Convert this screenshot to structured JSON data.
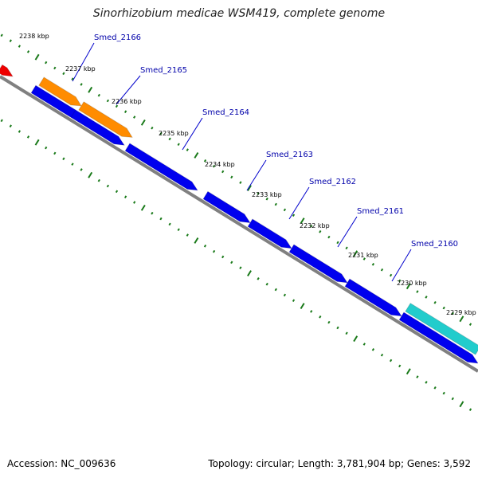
{
  "title": "Sinorhizobium medicae WSM419, complete genome",
  "footer": {
    "accession": "Accession: NC_009636",
    "summary": "Topology: circular; Length: 3,781,904 bp; Genes: 3,592"
  },
  "colors": {
    "backbone": "#808080",
    "tick": "#1a7a1a",
    "cds": "#0000ee",
    "orange_feature": "#ff8c00",
    "cyan_feature": "#22cccc",
    "red_feature": "#ee0000",
    "label_line": "#0000cc"
  },
  "ruler_labels": [
    "2238 kbp",
    "2237 kbp",
    "2236 kbp",
    "2235 kbp",
    "2234 kbp",
    "2233 kbp",
    "2232 kbp",
    "2231 kbp",
    "2230 kbp",
    "2229 kbp"
  ],
  "gene_labels": [
    "Smed_2166",
    "Smed_2165",
    "Smed_2164",
    "Smed_2163",
    "Smed_2162",
    "Smed_2161",
    "Smed_2160"
  ]
}
